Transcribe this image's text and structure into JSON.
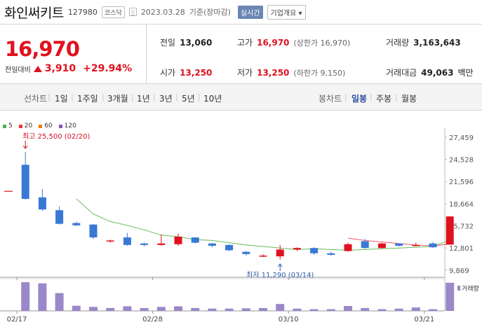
{
  "header": {
    "name": "화인써키트",
    "code": "127980",
    "market_badge": "코스닥",
    "date": "2023.03.28",
    "date_suffix": "기준(장마감)",
    "realtime_button": "실시간",
    "company_button": "기업개요"
  },
  "price": {
    "current": "16,970",
    "diff_label": "전일대비",
    "diff": "3,910",
    "pct": "+29.94%"
  },
  "stats": {
    "prev_label": "전일",
    "prev": "13,060",
    "high_label": "고가",
    "high": "16,970",
    "upper_limit": "(상한가 16,970)",
    "volume_label": "거래량",
    "volume": "3,163,643",
    "open_label": "시가",
    "open": "13,250",
    "low_label": "저가",
    "low": "13,250",
    "lower_limit": "(하한가 9,150)",
    "amount_label": "거래대금",
    "amount": "49,063",
    "amount_unit": "백만"
  },
  "tabs": {
    "line_chart": "선차트",
    "periods": [
      "1일",
      "1주일",
      "3개월",
      "1년",
      "3년",
      "5년",
      "10년"
    ],
    "candle_chart": "봉차트",
    "candles": [
      "일봉",
      "주봉",
      "월봉"
    ],
    "active": "일봉"
  },
  "legend": [
    {
      "label": "5",
      "color": "#4caf50"
    },
    {
      "label": "20",
      "color": "#e53935"
    },
    {
      "label": "60",
      "color": "#f57c00"
    },
    {
      "label": "120",
      "color": "#7e57c2"
    }
  ],
  "colors": {
    "up": "#e0111f",
    "down": "#3a78d6",
    "ma5": "#66bb55",
    "ma20": "#ee5566",
    "volume": "#9b88c9"
  },
  "chart_data": {
    "type": "candlestick",
    "x_ticks": [
      "02/17",
      "02/28",
      "03/10",
      "03/21"
    ],
    "y_ticks": [
      "27,459",
      "24,528",
      "21,596",
      "18,664",
      "15,732",
      "12,801",
      "9,869"
    ],
    "ylim": [
      9300,
      28000
    ],
    "max_annotation": "최고 25,500 (02/20)",
    "min_annotation": "최저 11,290 (03/14)",
    "volume_label": "거래량",
    "candles": [
      {
        "o": 20300,
        "h": 20300,
        "l": 20300,
        "c": 20300
      },
      {
        "o": 23800,
        "h": 25500,
        "l": 19200,
        "c": 19300
      },
      {
        "o": 19500,
        "h": 20600,
        "l": 17700,
        "c": 17900
      },
      {
        "o": 17800,
        "h": 18300,
        "l": 15900,
        "c": 16000
      },
      {
        "o": 16100,
        "h": 16300,
        "l": 15700,
        "c": 15800
      },
      {
        "o": 15900,
        "h": 16000,
        "l": 14000,
        "c": 14200
      },
      {
        "o": 13700,
        "h": 13900,
        "l": 13500,
        "c": 13800
      },
      {
        "o": 14200,
        "h": 14800,
        "l": 13100,
        "c": 13200
      },
      {
        "o": 13400,
        "h": 13500,
        "l": 13000,
        "c": 13200
      },
      {
        "o": 13200,
        "h": 14600,
        "l": 13100,
        "c": 13400
      },
      {
        "o": 13300,
        "h": 14700,
        "l": 13100,
        "c": 14300
      },
      {
        "o": 14200,
        "h": 14200,
        "l": 13400,
        "c": 13500
      },
      {
        "o": 13400,
        "h": 13500,
        "l": 12900,
        "c": 13100
      },
      {
        "o": 13200,
        "h": 13300,
        "l": 12400,
        "c": 12500
      },
      {
        "o": 12300,
        "h": 12400,
        "l": 11800,
        "c": 12000
      },
      {
        "o": 11700,
        "h": 12000,
        "l": 11600,
        "c": 11800
      },
      {
        "o": 11700,
        "h": 13200,
        "l": 11290,
        "c": 12600
      },
      {
        "o": 12600,
        "h": 12900,
        "l": 12400,
        "c": 12800
      },
      {
        "o": 12800,
        "h": 12900,
        "l": 11900,
        "c": 12100
      },
      {
        "o": 12100,
        "h": 12300,
        "l": 11800,
        "c": 11900
      },
      {
        "o": 12400,
        "h": 13500,
        "l": 12300,
        "c": 13300
      },
      {
        "o": 13700,
        "h": 14000,
        "l": 12700,
        "c": 12800
      },
      {
        "o": 12800,
        "h": 13500,
        "l": 12700,
        "c": 13400
      },
      {
        "o": 13400,
        "h": 13400,
        "l": 13000,
        "c": 13100
      },
      {
        "o": 13100,
        "h": 13500,
        "l": 13000,
        "c": 13200
      },
      {
        "o": 13400,
        "h": 13600,
        "l": 12800,
        "c": 12900
      },
      {
        "o": 13250,
        "h": 16970,
        "l": 13250,
        "c": 16970
      }
    ],
    "ma5": [
      null,
      null,
      null,
      null,
      19300,
      17300,
      16300,
      15800,
      15200,
      14500,
      14300,
      13900,
      13800,
      13500,
      13200,
      13000,
      12800,
      12600,
      12700,
      12600,
      12500,
      12600,
      12700,
      12800,
      12900,
      13000,
      13800
    ],
    "ma20": [
      null,
      null,
      null,
      null,
      null,
      null,
      null,
      null,
      null,
      null,
      null,
      null,
      null,
      null,
      null,
      null,
      null,
      null,
      null,
      null,
      14100,
      13800,
      13600,
      13400,
      13200,
      13100,
      13300
    ],
    "volume": [
      0,
      100,
      96,
      62,
      18,
      14,
      10,
      16,
      10,
      14,
      16,
      10,
      8,
      8,
      9,
      10,
      24,
      8,
      6,
      6,
      17,
      10,
      6,
      8,
      12,
      6,
      98
    ]
  }
}
